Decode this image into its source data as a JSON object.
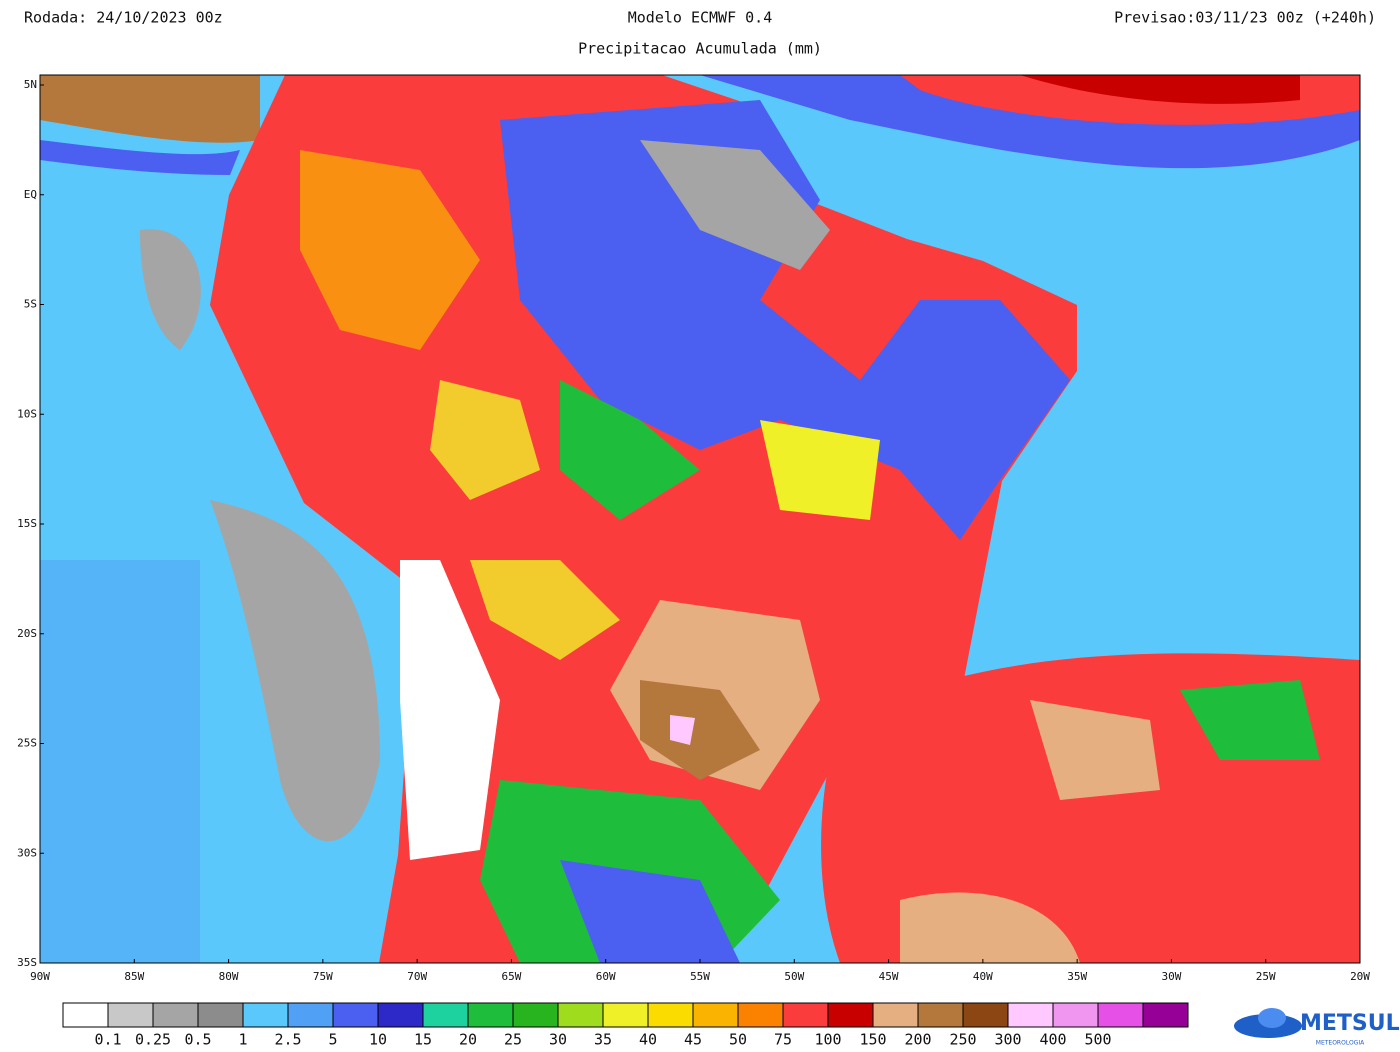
{
  "header": {
    "left": "Rodada: 24/10/2023 00z",
    "center": "Modelo ECMWF 0.4",
    "subtitle": "Precipitacao Acumulada (mm)",
    "right": "Previsao:03/11/23 00z (+240h)"
  },
  "axes": {
    "lat_labels": [
      "5N",
      "EQ",
      "5S",
      "10S",
      "15S",
      "20S",
      "25S",
      "30S",
      "35S"
    ],
    "lon_labels": [
      "90W",
      "85W",
      "80W",
      "75W",
      "70W",
      "65W",
      "60W",
      "55W",
      "50W",
      "45W",
      "40W",
      "35W",
      "30W",
      "25W",
      "20W"
    ]
  },
  "legend": {
    "colors": [
      "#ffffff",
      "#c8c8c8",
      "#a5a5a5",
      "#8c8c8c",
      "#5ac8fa",
      "#50a0f5",
      "#4b5ff0",
      "#2d28c8",
      "#1ed2a0",
      "#1ebe3c",
      "#28b41e",
      "#a0dc1e",
      "#f0f028",
      "#fadc00",
      "#fab400",
      "#fa8200",
      "#fa3c3c",
      "#c80000",
      "#e6af82",
      "#b4783c",
      "#8c4614",
      "#ffc8ff",
      "#f096f0",
      "#e650e6",
      "#960096"
    ],
    "labels": [
      "0.1",
      "0.25",
      "0.5",
      "1",
      "2.5",
      "5",
      "10",
      "15",
      "20",
      "25",
      "30",
      "35",
      "40",
      "45",
      "50",
      "75",
      "100",
      "150",
      "200",
      "250",
      "300",
      "400",
      "500"
    ]
  },
  "logo": {
    "name": "METSUL",
    "sub": "METEOROLOGIA"
  }
}
